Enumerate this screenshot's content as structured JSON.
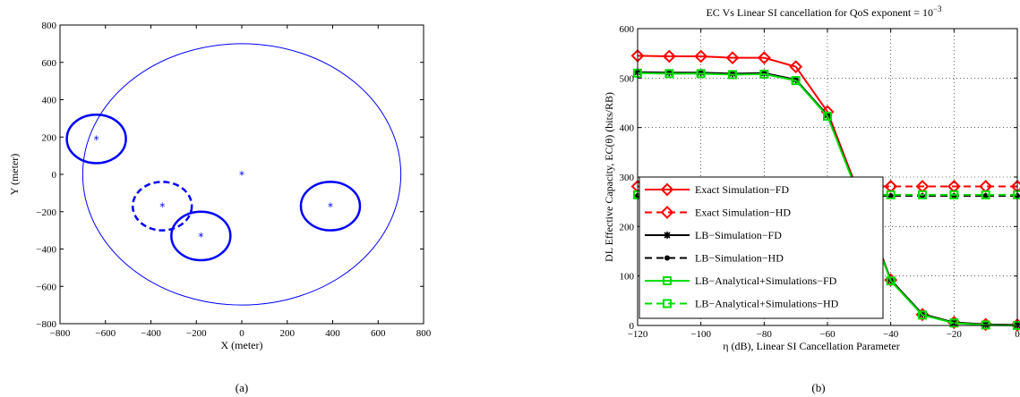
{
  "chart_data": [
    {
      "type": "scatter",
      "panel_caption": "(a)",
      "xlabel": "X (meter)",
      "ylabel": "Y (meter)",
      "xlim": [
        -800,
        800
      ],
      "ylim": [
        -800,
        800
      ],
      "xticks": [
        -800,
        -600,
        -400,
        -200,
        0,
        200,
        400,
        600,
        800
      ],
      "yticks": [
        -800,
        -600,
        -400,
        -200,
        0,
        200,
        400,
        600,
        800
      ],
      "color": "#0000ff",
      "points": [
        {
          "x": 0,
          "y": 0
        },
        {
          "x": -640,
          "y": 190
        },
        {
          "x": -350,
          "y": -170
        },
        {
          "x": -180,
          "y": -330
        },
        {
          "x": 390,
          "y": -170
        }
      ],
      "circles": [
        {
          "cx": 0,
          "cy": 0,
          "r": 700,
          "style": "solid-thin"
        },
        {
          "cx": -640,
          "cy": 190,
          "r": 130,
          "style": "solid-thick"
        },
        {
          "cx": -350,
          "cy": -170,
          "r": 130,
          "style": "dashed-thick"
        },
        {
          "cx": -180,
          "cy": -330,
          "r": 130,
          "style": "solid-thick"
        },
        {
          "cx": 390,
          "cy": -170,
          "r": 130,
          "style": "solid-thick"
        }
      ]
    },
    {
      "type": "line",
      "panel_caption": "(b)",
      "title_main": "EC Vs Linear SI cancellation for QoS exponent = 10",
      "title_sup": "−3",
      "xlabel": "η (dB), Linear SI Cancellation Parameter",
      "ylabel": "DL Effective Capacity, EC(θ) (bits/RB)",
      "xlim": [
        -120,
        0
      ],
      "ylim": [
        0,
        600
      ],
      "grid": true,
      "legend_position": "lower-left",
      "xticks": [
        -120,
        -100,
        -80,
        -60,
        -40,
        -20,
        0
      ],
      "yticks": [
        0,
        100,
        200,
        300,
        400,
        500,
        600
      ],
      "x": [
        -120,
        -110,
        -100,
        -90,
        -80,
        -70,
        -60,
        -50,
        -40,
        -30,
        -20,
        -10,
        0
      ],
      "series": [
        {
          "name": "Exact Simulation−FD",
          "color": "#ff0000",
          "dash": "solid",
          "marker": "diamond",
          "values": [
            545,
            544,
            544,
            541,
            541,
            523,
            432,
            265,
            92,
            22,
            6,
            2,
            1
          ]
        },
        {
          "name": "Exact Simulation−HD",
          "color": "#ff0000",
          "dash": "dashed",
          "marker": "diamond",
          "values": [
            281,
            281,
            281,
            281,
            281,
            281,
            281,
            281,
            281,
            281,
            281,
            281,
            281
          ]
        },
        {
          "name": "LB−Simulation−FD",
          "color": "#000000",
          "dash": "solid",
          "marker": "star",
          "values": [
            512,
            511,
            511,
            509,
            510,
            497,
            425,
            262,
            92,
            23,
            6,
            2,
            1
          ]
        },
        {
          "name": "LB−Simulation−HD",
          "color": "#000000",
          "dash": "dashed",
          "marker": "dot",
          "values": [
            262,
            262,
            262,
            262,
            262,
            262,
            262,
            262,
            262,
            262,
            262,
            262,
            262
          ]
        },
        {
          "name": "LB−Analytical+Simulations−FD",
          "color": "#00dd00",
          "dash": "solid",
          "marker": "square",
          "values": [
            510,
            509,
            509,
            507,
            508,
            495,
            423,
            260,
            90,
            21,
            5,
            1,
            0
          ]
        },
        {
          "name": "LB−Analytical+Simulations−HD",
          "color": "#00dd00",
          "dash": "dashed",
          "marker": "square",
          "values": [
            264,
            264,
            264,
            264,
            264,
            264,
            264,
            264,
            264,
            264,
            264,
            264,
            264
          ]
        }
      ]
    }
  ]
}
